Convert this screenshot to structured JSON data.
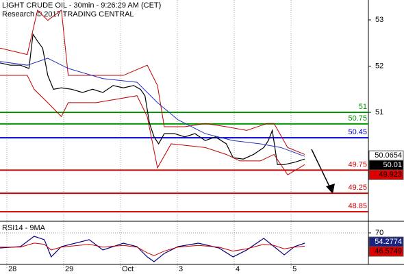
{
  "chart_data": [
    {
      "type": "line",
      "title": "LIGHT CRUDE OIL - 30min - 9:26:29 AM (CET)",
      "subtitle": "Research © 2017 TRADING CENTRAL",
      "xlim": [
        -0.12,
        6.36
      ],
      "xticks": [
        {
          "value": 0,
          "label": "28"
        },
        {
          "value": 1,
          "label": "29"
        },
        {
          "value": 2,
          "label": "Oct"
        },
        {
          "value": 3,
          "label": "3"
        },
        {
          "value": 4,
          "label": "4"
        },
        {
          "value": 5,
          "label": "5"
        }
      ],
      "ylim": [
        48.66,
        53.43
      ],
      "yticks": [
        51,
        52,
        53
      ],
      "series": [
        {
          "color": "#000000",
          "x": [
            -0.12,
            0.06,
            0.24,
            0.39,
            0.46,
            0.54,
            0.63,
            0.72,
            0.82,
            0.96,
            1.14,
            1.33,
            1.51,
            1.69,
            1.87,
            2.05,
            2.23,
            2.35,
            2.43,
            2.51,
            2.59,
            2.67,
            2.77,
            2.95,
            3.13,
            3.31,
            3.49,
            3.67,
            3.86,
            3.98,
            4.16,
            4.34,
            4.52,
            4.6,
            4.67,
            4.76,
            4.88,
            5.06,
            5.24
          ],
          "values": [
            52.07,
            52.02,
            52.02,
            51.95,
            52.69,
            52.54,
            52.39,
            51.8,
            51.5,
            51.53,
            51.5,
            51.43,
            51.5,
            51.43,
            51.58,
            51.53,
            51.58,
            51.5,
            51.36,
            50.76,
            50.47,
            50.32,
            50.54,
            50.54,
            50.47,
            50.54,
            50.39,
            50.47,
            50.32,
            50.02,
            49.99,
            50.09,
            50.24,
            50.39,
            50.61,
            49.87,
            49.87,
            49.92,
            49.99
          ]
        },
        {
          "color": "#c00000",
          "x": [
            -0.12,
            0.36,
            0.54,
            0.72,
            0.96,
            1.08,
            1.45,
            2.05,
            2.47,
            2.65,
            2.77,
            3.13,
            3.49,
            3.86,
            4.22,
            4.58,
            4.7,
            4.94,
            5.24
          ],
          "values": [
            52.39,
            52.25,
            53.21,
            52.99,
            53.21,
            51.8,
            51.8,
            51.8,
            52.02,
            51.58,
            50.69,
            50.69,
            50.76,
            50.69,
            50.61,
            50.76,
            50.76,
            50.24,
            50.09
          ]
        },
        {
          "color": "#c00000",
          "x": [
            -0.12,
            0.36,
            0.48,
            0.72,
            0.96,
            1.08,
            1.57,
            2.29,
            2.47,
            2.65,
            2.89,
            3.49,
            3.86,
            4.1,
            4.46,
            4.7,
            4.94,
            5.24
          ],
          "values": [
            51.8,
            51.8,
            51.5,
            51.21,
            50.91,
            51.21,
            51.21,
            51.36,
            50.91,
            49.8,
            50.32,
            50.24,
            50.09,
            49.95,
            49.95,
            50.09,
            49.65,
            49.87
          ]
        },
        {
          "color": "#2030c0",
          "x": [
            -0.12,
            0.36,
            0.72,
            1.08,
            1.69,
            2.29,
            2.65,
            3.01,
            3.49,
            3.98,
            4.46,
            4.82,
            5.24
          ],
          "values": [
            52.1,
            52.02,
            52.17,
            51.95,
            51.73,
            51.65,
            51.21,
            50.84,
            50.54,
            50.39,
            50.32,
            50.24,
            50.05
          ]
        }
      ],
      "levels": [
        {
          "value": 51,
          "color": "#009900"
        },
        {
          "value": 50.75,
          "color": "#009900"
        },
        {
          "value": 50.45,
          "color": "#0000cc"
        },
        {
          "value": 49.75,
          "color": "#cc0000"
        },
        {
          "value": 49.25,
          "color": "#cc0000"
        },
        {
          "value": 48.85,
          "color": "#cc0000"
        }
      ],
      "price_labels": [
        {
          "value": 50.0654,
          "color": "#ffffff",
          "text_color": "#000000"
        },
        {
          "value": 50.01,
          "color": "#000000",
          "text_color": "#ffffff"
        },
        {
          "value": 49.923,
          "color": "#dd0000",
          "text_color": "#000000"
        }
      ]
    },
    {
      "type": "line",
      "title": "RSI14 - 9MA",
      "xlim": [
        -0.12,
        6.36
      ],
      "ylim": [
        15.8,
        88
      ],
      "yticks": [
        70
      ],
      "series": [
        {
          "color": "#000080",
          "x": [
            -0.12,
            0.24,
            0.48,
            0.66,
            0.78,
            0.96,
            1.45,
            1.69,
            2.05,
            2.29,
            2.47,
            2.59,
            2.77,
            3.01,
            3.37,
            3.73,
            3.98,
            4.22,
            4.52,
            4.7,
            4.88,
            5.06,
            5.24
          ],
          "values": [
            43.5,
            45.9,
            64.0,
            58.0,
            27.8,
            45.9,
            58.0,
            39.9,
            51.9,
            45.9,
            27.8,
            19.4,
            33.9,
            45.9,
            51.9,
            43.5,
            27.8,
            39.9,
            60.4,
            45.9,
            31.4,
            45.9,
            51.9
          ]
        },
        {
          "color": "#cc0000",
          "x": [
            -0.12,
            0.24,
            0.48,
            0.66,
            0.78,
            0.96,
            1.45,
            1.69,
            2.05,
            2.29,
            2.47,
            2.59,
            2.77,
            3.01,
            3.37,
            3.73,
            3.98,
            4.22,
            4.52,
            4.7,
            4.88,
            5.06,
            5.24
          ],
          "values": [
            45,
            45,
            52,
            50,
            40,
            45,
            50,
            45,
            48,
            45,
            35,
            30,
            38,
            45,
            48,
            45,
            38,
            42,
            50,
            48,
            42,
            45,
            46.57
          ]
        }
      ],
      "price_labels": [
        {
          "value": 54.2774,
          "color": "#1a237e",
          "text_color": "#ffffff"
        },
        {
          "value": 46.5749,
          "color": "#dd0000",
          "text_color": "#000000"
        }
      ]
    }
  ]
}
